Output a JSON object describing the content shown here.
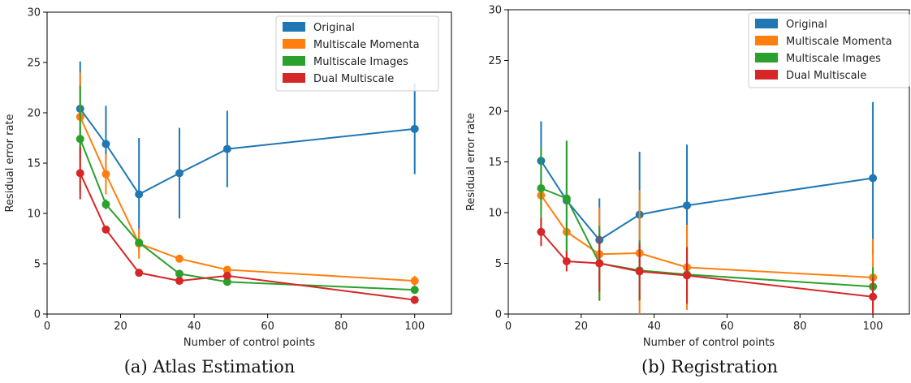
{
  "chart_data": [
    {
      "type": "line",
      "caption": "(a) Atlas Estimation",
      "xlabel": "Number of control points",
      "ylabel": "Residual error rate",
      "xlim": [
        0,
        110
      ],
      "ylim": [
        0,
        30
      ],
      "xticks": [
        0,
        20,
        40,
        60,
        80,
        100
      ],
      "yticks": [
        0,
        5,
        10,
        15,
        20,
        25,
        30
      ],
      "legend_position": "top-right",
      "x": [
        9,
        16,
        25,
        36,
        49,
        100
      ],
      "series": [
        {
          "name": "Original",
          "color": "#1f77b4",
          "values": [
            20.4,
            16.9,
            11.9,
            14.0,
            16.4,
            18.4
          ],
          "err": [
            4.7,
            3.8,
            5.6,
            4.5,
            3.8,
            4.5
          ]
        },
        {
          "name": "Multiscale Momenta",
          "color": "#ff7f0e",
          "values": [
            19.6,
            13.9,
            7.0,
            5.5,
            4.4,
            3.3
          ],
          "err": [
            4.4,
            2.0,
            1.5,
            0.3,
            0.3,
            0.5
          ]
        },
        {
          "name": "Multiscale Images",
          "color": "#2ca02c",
          "values": [
            17.4,
            10.9,
            7.1,
            4.0,
            3.2,
            2.4
          ],
          "err": [
            5.3,
            0.5,
            0.3,
            0.2,
            0.2,
            0.2
          ]
        },
        {
          "name": "Dual Multiscale",
          "color": "#d62728",
          "values": [
            14.0,
            8.4,
            4.1,
            3.3,
            3.8,
            1.4
          ],
          "err": [
            2.6,
            0.2,
            0.3,
            0.3,
            0.3,
            0.2
          ]
        }
      ]
    },
    {
      "type": "line",
      "caption": "(b) Registration",
      "xlabel": "Number of control points",
      "ylabel": "Residual error rate",
      "xlim": [
        0,
        110
      ],
      "ylim": [
        0,
        30
      ],
      "xticks": [
        0,
        20,
        40,
        60,
        80,
        100
      ],
      "yticks": [
        0,
        5,
        10,
        15,
        20,
        25,
        30
      ],
      "legend_position": "top-right",
      "x": [
        9,
        16,
        25,
        36,
        49,
        100
      ],
      "series": [
        {
          "name": "Original",
          "color": "#1f77b4",
          "values": [
            15.1,
            11.2,
            7.3,
            9.8,
            10.7,
            13.4
          ],
          "err": [
            3.9,
            5.8,
            4.1,
            6.2,
            6.0,
            7.5
          ]
        },
        {
          "name": "Multiscale Momenta",
          "color": "#ff7f0e",
          "values": [
            11.7,
            8.1,
            5.9,
            6.0,
            4.6,
            3.6
          ],
          "err": [
            1.5,
            1.0,
            4.6,
            6.2,
            4.2,
            3.8
          ]
        },
        {
          "name": "Multiscale Images",
          "color": "#2ca02c",
          "values": [
            12.4,
            11.4,
            5.0,
            4.3,
            3.9,
            2.7
          ],
          "err": [
            4.0,
            5.7,
            3.7,
            3.0,
            2.7,
            1.9
          ]
        },
        {
          "name": "Dual Multiscale",
          "color": "#d62728",
          "values": [
            8.1,
            5.2,
            5.0,
            4.2,
            3.8,
            1.7
          ],
          "err": [
            1.4,
            1.0,
            2.8,
            2.8,
            2.8,
            1.9
          ]
        }
      ]
    }
  ]
}
